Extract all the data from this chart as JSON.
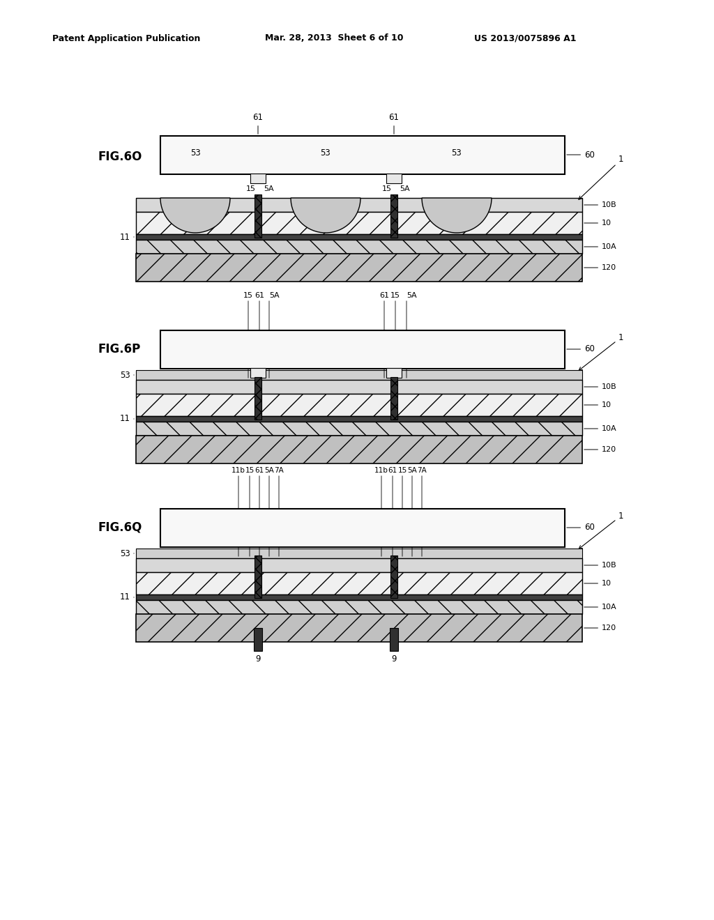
{
  "bg_color": "#ffffff",
  "header_left": "Patent Application Publication",
  "header_mid": "Mar. 28, 2013  Sheet 6 of 10",
  "header_right": "US 2013/0075896 A1",
  "fig_labels": [
    "FIG.6O",
    "FIG.6P",
    "FIG.6Q"
  ],
  "layer_colors": {
    "glass_fill": "#f8f8f8",
    "layer10_fill": "#f0f0f0",
    "layer10B_fill": "#d8d8d8",
    "layer10A_fill": "#d0d0d0",
    "layer120_fill": "#c0c0c0",
    "layer11_fill": "#404040",
    "bump53_fill": "#c8c8c8",
    "underfill53_fill": "#d0d0d0",
    "via_fill": "#303030",
    "bump61_fill": "#e8e8e8"
  }
}
